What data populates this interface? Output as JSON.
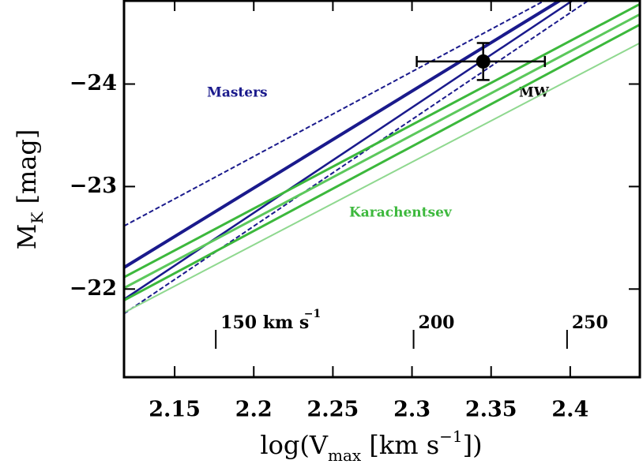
{
  "chart_data": {
    "type": "line",
    "xlabel_parts": [
      {
        "text": "log(V",
        "style": "normal"
      },
      {
        "text": "max",
        "style": "sub"
      },
      {
        "text": " [km s",
        "style": "normal"
      },
      {
        "text": "−1",
        "style": "sup"
      },
      {
        "text": "])",
        "style": "normal"
      }
    ],
    "ylabel_parts": [
      {
        "text": "M",
        "style": "normal"
      },
      {
        "text": "K",
        "style": "sub"
      },
      {
        "text": " [mag]",
        "style": "normal"
      }
    ],
    "xlim": [
      2.118,
      2.444
    ],
    "ylim": [
      -21.14,
      -24.82
    ],
    "xticks": [
      2.15,
      2.2,
      2.25,
      2.3,
      2.35,
      2.4
    ],
    "yticks": [
      {
        "value": -24,
        "label": "−24"
      },
      {
        "value": -23,
        "label": "−23"
      },
      {
        "value": -22,
        "label": "−22"
      }
    ],
    "top_ticks": [
      {
        "value": 2.176,
        "label": "150 km s",
        "sup": "−1"
      },
      {
        "value": 2.301,
        "label": "200"
      },
      {
        "value": 2.398,
        "label": "250"
      }
    ],
    "series": [
      {
        "color": "#1a1a8c",
        "dash": true,
        "width": 2,
        "x": [
          2.118,
          2.3845
        ],
        "values": [
          -22.615,
          -24.82
        ]
      },
      {
        "color": "#1a1a8c",
        "dash": false,
        "width": 4,
        "x": [
          2.118,
          2.394
        ],
        "values": [
          -22.21,
          -24.82
        ]
      },
      {
        "color": "#1a1a8c",
        "dash": false,
        "width": 2.5,
        "x": [
          2.118,
          2.402
        ],
        "values": [
          -21.9,
          -24.82
        ]
      },
      {
        "color": "#1a1a8c",
        "dash": true,
        "width": 2,
        "x": [
          2.118,
          2.412
        ],
        "values": [
          -21.76,
          -24.82
        ]
      },
      {
        "color": "#3cb83c",
        "dash": false,
        "width": 3,
        "x": [
          2.118,
          2.444
        ],
        "values": [
          -22.115,
          -24.78
        ]
      },
      {
        "color": "#5cc85c",
        "dash": false,
        "width": 3,
        "x": [
          2.118,
          2.444
        ],
        "values": [
          -22.01,
          -24.68
        ]
      },
      {
        "color": "#3cb83c",
        "dash": false,
        "width": 3,
        "x": [
          2.118,
          2.444
        ],
        "values": [
          -21.89,
          -24.58
        ]
      },
      {
        "color": "#8fd88f",
        "dash": false,
        "width": 2,
        "x": [
          2.118,
          2.444
        ],
        "values": [
          -21.77,
          -24.4
        ]
      }
    ],
    "points": [
      {
        "x": 2.345,
        "y": -24.22,
        "xerr": [
          0.042,
          0.039
        ],
        "yerr": 0.18
      }
    ],
    "annotations": {
      "masters": "Masters",
      "karachentsev": "Karachentsev",
      "mw": "MW"
    }
  }
}
